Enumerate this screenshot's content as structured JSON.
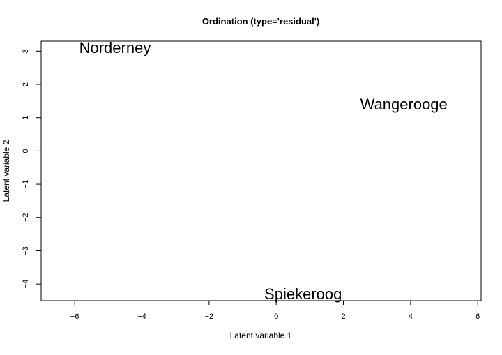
{
  "chart_data": {
    "type": "scatter",
    "title": "Ordination (type='residual')",
    "xlabel": "Latent variable 1",
    "ylabel": "Latent variable 2",
    "xlim": [
      -7.0,
      6.1
    ],
    "ylim": [
      -4.5,
      3.3
    ],
    "xticks": [
      -6,
      -4,
      -2,
      0,
      2,
      4,
      6
    ],
    "yticks": [
      -4,
      -3,
      -2,
      -1,
      0,
      1,
      2,
      3
    ],
    "grid": false,
    "points": [
      {
        "label": "Norderney",
        "x": -4.8,
        "y": 3.1
      },
      {
        "label": "Wangerooge",
        "x": 3.8,
        "y": 1.4
      },
      {
        "label": "Spiekeroog",
        "x": 0.8,
        "y": -4.3
      }
    ]
  }
}
